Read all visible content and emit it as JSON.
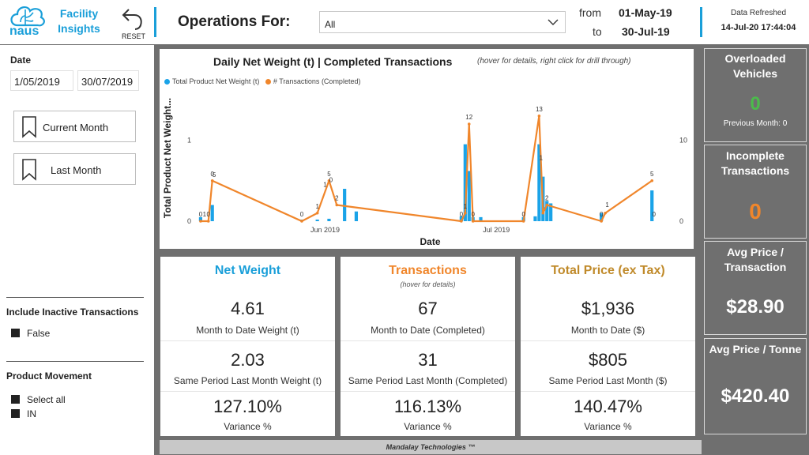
{
  "header": {
    "logo_text": "naus",
    "title_line1": "Facility",
    "title_line2": "Insights",
    "reset_label": "RESET",
    "ops_label": "Operations For:",
    "ops_value": "All",
    "from_label": "from",
    "from_value": "01-May-19",
    "to_label": "to",
    "to_value": "30-Jul-19",
    "refreshed_label": "Data Refreshed",
    "refreshed_value": "14-Jul-20 17:44:04",
    "accent": "#1a9fd9"
  },
  "sidebar": {
    "date_heading": "Date",
    "date_start": "1/05/2019",
    "date_end": "30/07/2019",
    "btn_current_month": "Current Month",
    "btn_last_month": "Last Month",
    "inactive_heading": "Include Inactive Transactions",
    "inactive_option": "False",
    "movement_heading": "Product Movement",
    "movement_options": [
      "Select all",
      "IN"
    ]
  },
  "chart_data": {
    "type": "bar",
    "title": "Daily Net Weight (t) | Completed Transactions",
    "subtitle": "(hover for details, right click for drill through)",
    "xlabel": "Date",
    "ylabel": "Total Product Net Weight...",
    "x_ticks": [
      "Jun 2019",
      "Jul 2019"
    ],
    "y_left_ticks": [
      "0",
      "1"
    ],
    "y_right_ticks": [
      "0",
      "10"
    ],
    "ylim_left": [
      0,
      1.6
    ],
    "ylim_right": [
      0,
      16
    ],
    "legend": [
      "Total Product Net Weight (t)",
      "# Transactions (Completed)"
    ],
    "colors": {
      "bars": "#1aa3e8",
      "line": "#f0862b"
    },
    "series": [
      {
        "name": "Total Product Net Weight (t)",
        "points": [
          [
            1,
            0.05
          ],
          [
            4,
            0.2
          ],
          [
            27,
            0.02
          ],
          [
            31,
            0.02
          ],
          [
            34,
            0.03
          ],
          [
            38,
            0.4
          ],
          [
            41,
            0.12
          ],
          [
            68,
            0.06
          ],
          [
            69,
            0.95
          ],
          [
            70,
            0.62
          ],
          [
            71,
            0.05
          ],
          [
            73,
            0.05
          ],
          [
            84,
            0.05
          ],
          [
            87,
            0.06
          ],
          [
            88,
            0.95
          ],
          [
            89,
            0.55
          ],
          [
            90,
            0.25
          ],
          [
            91,
            0.22
          ],
          [
            104,
            0.1
          ],
          [
            117,
            0.38
          ]
        ]
      },
      {
        "name": "# Transactions (Completed)",
        "points": [
          [
            1,
            0
          ],
          [
            3,
            0
          ],
          [
            4,
            5
          ],
          [
            27,
            0
          ],
          [
            31,
            1
          ],
          [
            34,
            5
          ],
          [
            36,
            2
          ],
          [
            68,
            0
          ],
          [
            69,
            1
          ],
          [
            70,
            12
          ],
          [
            71,
            0
          ],
          [
            84,
            0
          ],
          [
            88,
            13
          ],
          [
            89,
            1
          ],
          [
            90,
            2
          ],
          [
            104,
            0
          ],
          [
            105,
            1
          ],
          [
            117,
            5
          ]
        ]
      }
    ],
    "point_labels": [
      {
        "x": 1,
        "text": "0"
      },
      {
        "x": 2,
        "text": "1"
      },
      {
        "x": 3,
        "text": "0"
      },
      {
        "x": 4,
        "text": "0"
      },
      {
        "x": 4.5,
        "text": "5"
      },
      {
        "x": 27,
        "text": "0"
      },
      {
        "x": 31,
        "text": "1"
      },
      {
        "x": 33,
        "text": "1"
      },
      {
        "x": 34,
        "text": "5"
      },
      {
        "x": 34.5,
        "text": "0"
      },
      {
        "x": 36,
        "text": "2"
      },
      {
        "x": 68,
        "text": "0"
      },
      {
        "x": 69,
        "text": "1"
      },
      {
        "x": 70,
        "text": "12"
      },
      {
        "x": 71,
        "text": "0"
      },
      {
        "x": 84,
        "text": "0"
      },
      {
        "x": 88,
        "text": "13"
      },
      {
        "x": 88.5,
        "text": "1"
      },
      {
        "x": 90,
        "text": "2"
      },
      {
        "x": 104,
        "text": "0"
      },
      {
        "x": 105.5,
        "text": "1"
      },
      {
        "x": 117,
        "text": "5"
      },
      {
        "x": 117.5,
        "text": "0"
      }
    ]
  },
  "cards": [
    {
      "title": "Net Weight",
      "subtitle": "",
      "color": "#1a9fd9",
      "mtd_value": "4.61",
      "mtd_label": "Month to Date Weight (t)",
      "last_value": "2.03",
      "last_label": "Same Period Last Month Weight (t)",
      "var_value": "127.10%",
      "var_label": "Variance %"
    },
    {
      "title": "Transactions",
      "subtitle": "(hover for details)",
      "color": "#f0862b",
      "mtd_value": "67",
      "mtd_label": "Month to Date (Completed)",
      "last_value": "31",
      "last_label": "Same Period Last Month (Completed)",
      "var_value": "116.13%",
      "var_label": "Variance %"
    },
    {
      "title": "Total Price (ex Tax)",
      "subtitle": "",
      "color": "#c08a2a",
      "mtd_value": "$1,936",
      "mtd_label": "Month to Date ($)",
      "last_value": "$805",
      "last_label": "Same Period Last Month ($)",
      "var_value": "140.47%",
      "var_label": "Variance %"
    }
  ],
  "tiles": {
    "overloaded": {
      "title": "Overloaded Vehicles",
      "value": "0",
      "sub": "Previous Month: 0",
      "color": "#4cbb4c"
    },
    "incomplete": {
      "title": "Incomplete Transactions",
      "value": "0",
      "color": "#f0862b"
    },
    "avg_tx": {
      "title": "Avg Price / Transaction",
      "value": "$28.90",
      "color": "#ffffff"
    },
    "avg_tonne": {
      "title": "Avg Price / Tonne",
      "value": "$420.40",
      "color": "#ffffff"
    }
  },
  "footer": {
    "text": "Mandalay Technologies ™"
  }
}
